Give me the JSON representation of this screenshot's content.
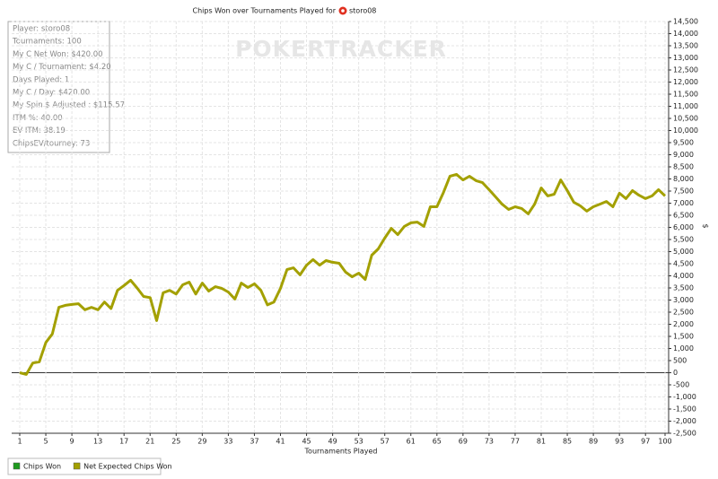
{
  "chart_data": {
    "type": "line",
    "title": "Chips Won over Tournaments Played for",
    "player": "storo08",
    "watermark": "POKERTRACKER",
    "x_label": "Tournaments Played",
    "y_label": "$",
    "stats": [
      "Player: storo08",
      "Tournaments: 100",
      "My C Net Won: $420.00",
      "My C / Tournament: $4.20",
      "Days Played: 1",
      "My C / Day: $420.00",
      "My Spin $ Adjusted : $115.57",
      "ITM %: 40.00",
      "EV ITM: 38.19",
      "ChipsEV/tourney: 73"
    ],
    "legend": [
      {
        "name": "Chips Won",
        "color": "#1f9a1f"
      },
      {
        "name": "Net Expected Chips Won",
        "color": "#a3a000"
      }
    ],
    "x": [
      1,
      2,
      3,
      4,
      5,
      6,
      7,
      8,
      9,
      10,
      11,
      12,
      13,
      14,
      15,
      16,
      17,
      18,
      19,
      20,
      21,
      22,
      23,
      24,
      25,
      26,
      27,
      28,
      29,
      30,
      31,
      32,
      33,
      34,
      35,
      36,
      37,
      38,
      39,
      40,
      41,
      42,
      43,
      44,
      45,
      46,
      47,
      48,
      49,
      50,
      51,
      52,
      53,
      54,
      55,
      56,
      57,
      58,
      59,
      60,
      61,
      62,
      63,
      64,
      65,
      66,
      67,
      68,
      69,
      70,
      71,
      72,
      73,
      74,
      75,
      76,
      77,
      78,
      79,
      80,
      81,
      82,
      83,
      84,
      85,
      86,
      87,
      88,
      89,
      90,
      91,
      92,
      93,
      94,
      95,
      96,
      97,
      98,
      99,
      100
    ],
    "series": [
      {
        "color": "#a3a000",
        "values": [
          0,
          -70,
          400,
          450,
          1250,
          1600,
          2700,
          2780,
          2820,
          2850,
          2600,
          2700,
          2600,
          2920,
          2650,
          3400,
          3600,
          3820,
          3500,
          3150,
          3100,
          2150,
          3300,
          3400,
          3250,
          3630,
          3740,
          3250,
          3700,
          3370,
          3550,
          3480,
          3330,
          3040,
          3700,
          3520,
          3670,
          3400,
          2800,
          2920,
          3480,
          4260,
          4330,
          4040,
          4440,
          4670,
          4440,
          4630,
          4560,
          4520,
          4150,
          3960,
          4110,
          3850,
          4850,
          5110,
          5560,
          5960,
          5700,
          6040,
          6190,
          6220,
          6040,
          6850,
          6850,
          7440,
          8110,
          8190,
          7960,
          8110,
          7930,
          7850,
          7560,
          7260,
          6960,
          6740,
          6850,
          6780,
          6560,
          6960,
          7630,
          7300,
          7370,
          7960,
          7520,
          7040,
          6890,
          6670,
          6850,
          6960,
          7070,
          6850,
          7410,
          7190,
          7520,
          7330,
          7190,
          7300,
          7560,
          7300
        ]
      }
    ],
    "xlim": [
      1,
      100
    ],
    "xticks": [
      1,
      5,
      9,
      13,
      17,
      21,
      25,
      29,
      33,
      37,
      41,
      45,
      49,
      53,
      57,
      61,
      65,
      69,
      73,
      77,
      81,
      85,
      89,
      93,
      97,
      100
    ],
    "ylim": [
      -2500,
      14500
    ],
    "yticks": [
      {
        "value": -2500,
        "label": "-2,500"
      },
      {
        "value": -2000,
        "label": "-2,000"
      },
      {
        "value": -1500,
        "label": "-1,500"
      },
      {
        "value": -1000,
        "label": "-1,000"
      },
      -500,
      0,
      500,
      {
        "value": 1000,
        "label": "1,000"
      },
      {
        "value": 1500,
        "label": "1,500"
      },
      {
        "value": 2000,
        "label": "2,000"
      },
      {
        "value": 2500,
        "label": "2,500"
      },
      {
        "value": 3000,
        "label": "3,000"
      },
      {
        "value": 3500,
        "label": "3,500"
      },
      {
        "value": 4000,
        "label": "4,000"
      },
      {
        "value": 4500,
        "label": "4,500"
      },
      {
        "value": 5000,
        "label": "5,000"
      },
      {
        "value": 5500,
        "label": "5,500"
      },
      {
        "value": 6000,
        "label": "6,000"
      },
      {
        "value": 6500,
        "label": "6,500"
      },
      {
        "value": 7000,
        "label": "7,000"
      },
      {
        "value": 7500,
        "label": "7,500"
      },
      {
        "value": 8000,
        "label": "8,000"
      },
      {
        "value": 8500,
        "label": "8,500"
      },
      {
        "value": 9000,
        "label": "9,000"
      },
      {
        "value": 9500,
        "label": "9,500"
      },
      {
        "value": 10000,
        "label": "10,000"
      },
      {
        "value": 10500,
        "label": "10,500"
      },
      {
        "value": 11000,
        "label": "11,000"
      },
      {
        "value": 11500,
        "label": "11,500"
      },
      {
        "value": 12000,
        "label": "12,000"
      },
      {
        "value": 12500,
        "label": "12,500"
      },
      {
        "value": 13000,
        "label": "13,000"
      },
      {
        "value": 13500,
        "label": "13,500"
      },
      {
        "value": 14000,
        "label": "14,000"
      },
      {
        "value": 14500,
        "label": "14,500"
      }
    ],
    "grid": true
  }
}
